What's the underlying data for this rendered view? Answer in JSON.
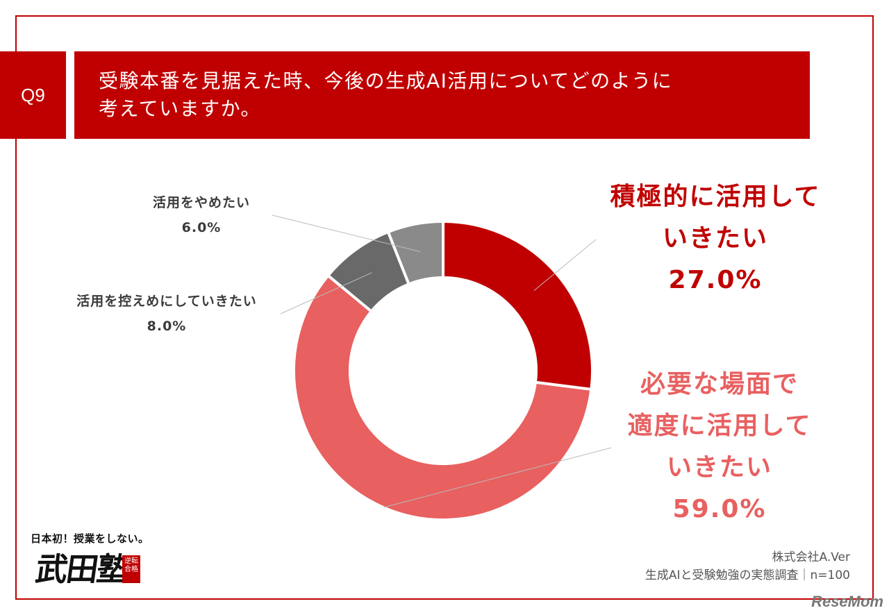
{
  "header": {
    "q_number": "Q9",
    "title_line1": "受験本番を見据えた時、今後の生成AI活用についてどのように",
    "title_line2": "考えていますか。"
  },
  "chart_data": {
    "type": "pie",
    "donut": true,
    "title": "受験本番を見据えた時、今後の生成AI活用についてどのように考えていますか。",
    "categories": [
      "積極的に活用していきたい",
      "必要な場面で適度に活用していきたい",
      "活用を控えめにしていきたい",
      "活用をやめたい"
    ],
    "values": [
      27.0,
      59.0,
      8.0,
      6.0
    ],
    "colors": [
      "#c00000",
      "#e86060",
      "#696969",
      "#8a8a8a"
    ],
    "labels": [
      {
        "lines": [
          "積極的に活用して",
          "いきたい"
        ],
        "value_text": "27.0%",
        "color": "#c00000"
      },
      {
        "lines": [
          "必要な場面で",
          "適度に活用して",
          "いきたい"
        ],
        "value_text": "59.0%",
        "color": "#e86060"
      },
      {
        "lines": [
          "活用を控えめにしていきたい"
        ],
        "value_text": "8.0%",
        "color": "#3a3a3a"
      },
      {
        "lines": [
          "活用をやめたい"
        ],
        "value_text": "6.0%",
        "color": "#3a3a3a"
      }
    ]
  },
  "source": {
    "company": "株式会社A.Ver",
    "survey": "生成AIと受験勉強の実態調査｜n=100"
  },
  "logo": {
    "tagline": "日本初！授業をしない。",
    "name": "武田塾",
    "seal_text": "逆転合格"
  },
  "watermark": "ReseMom"
}
